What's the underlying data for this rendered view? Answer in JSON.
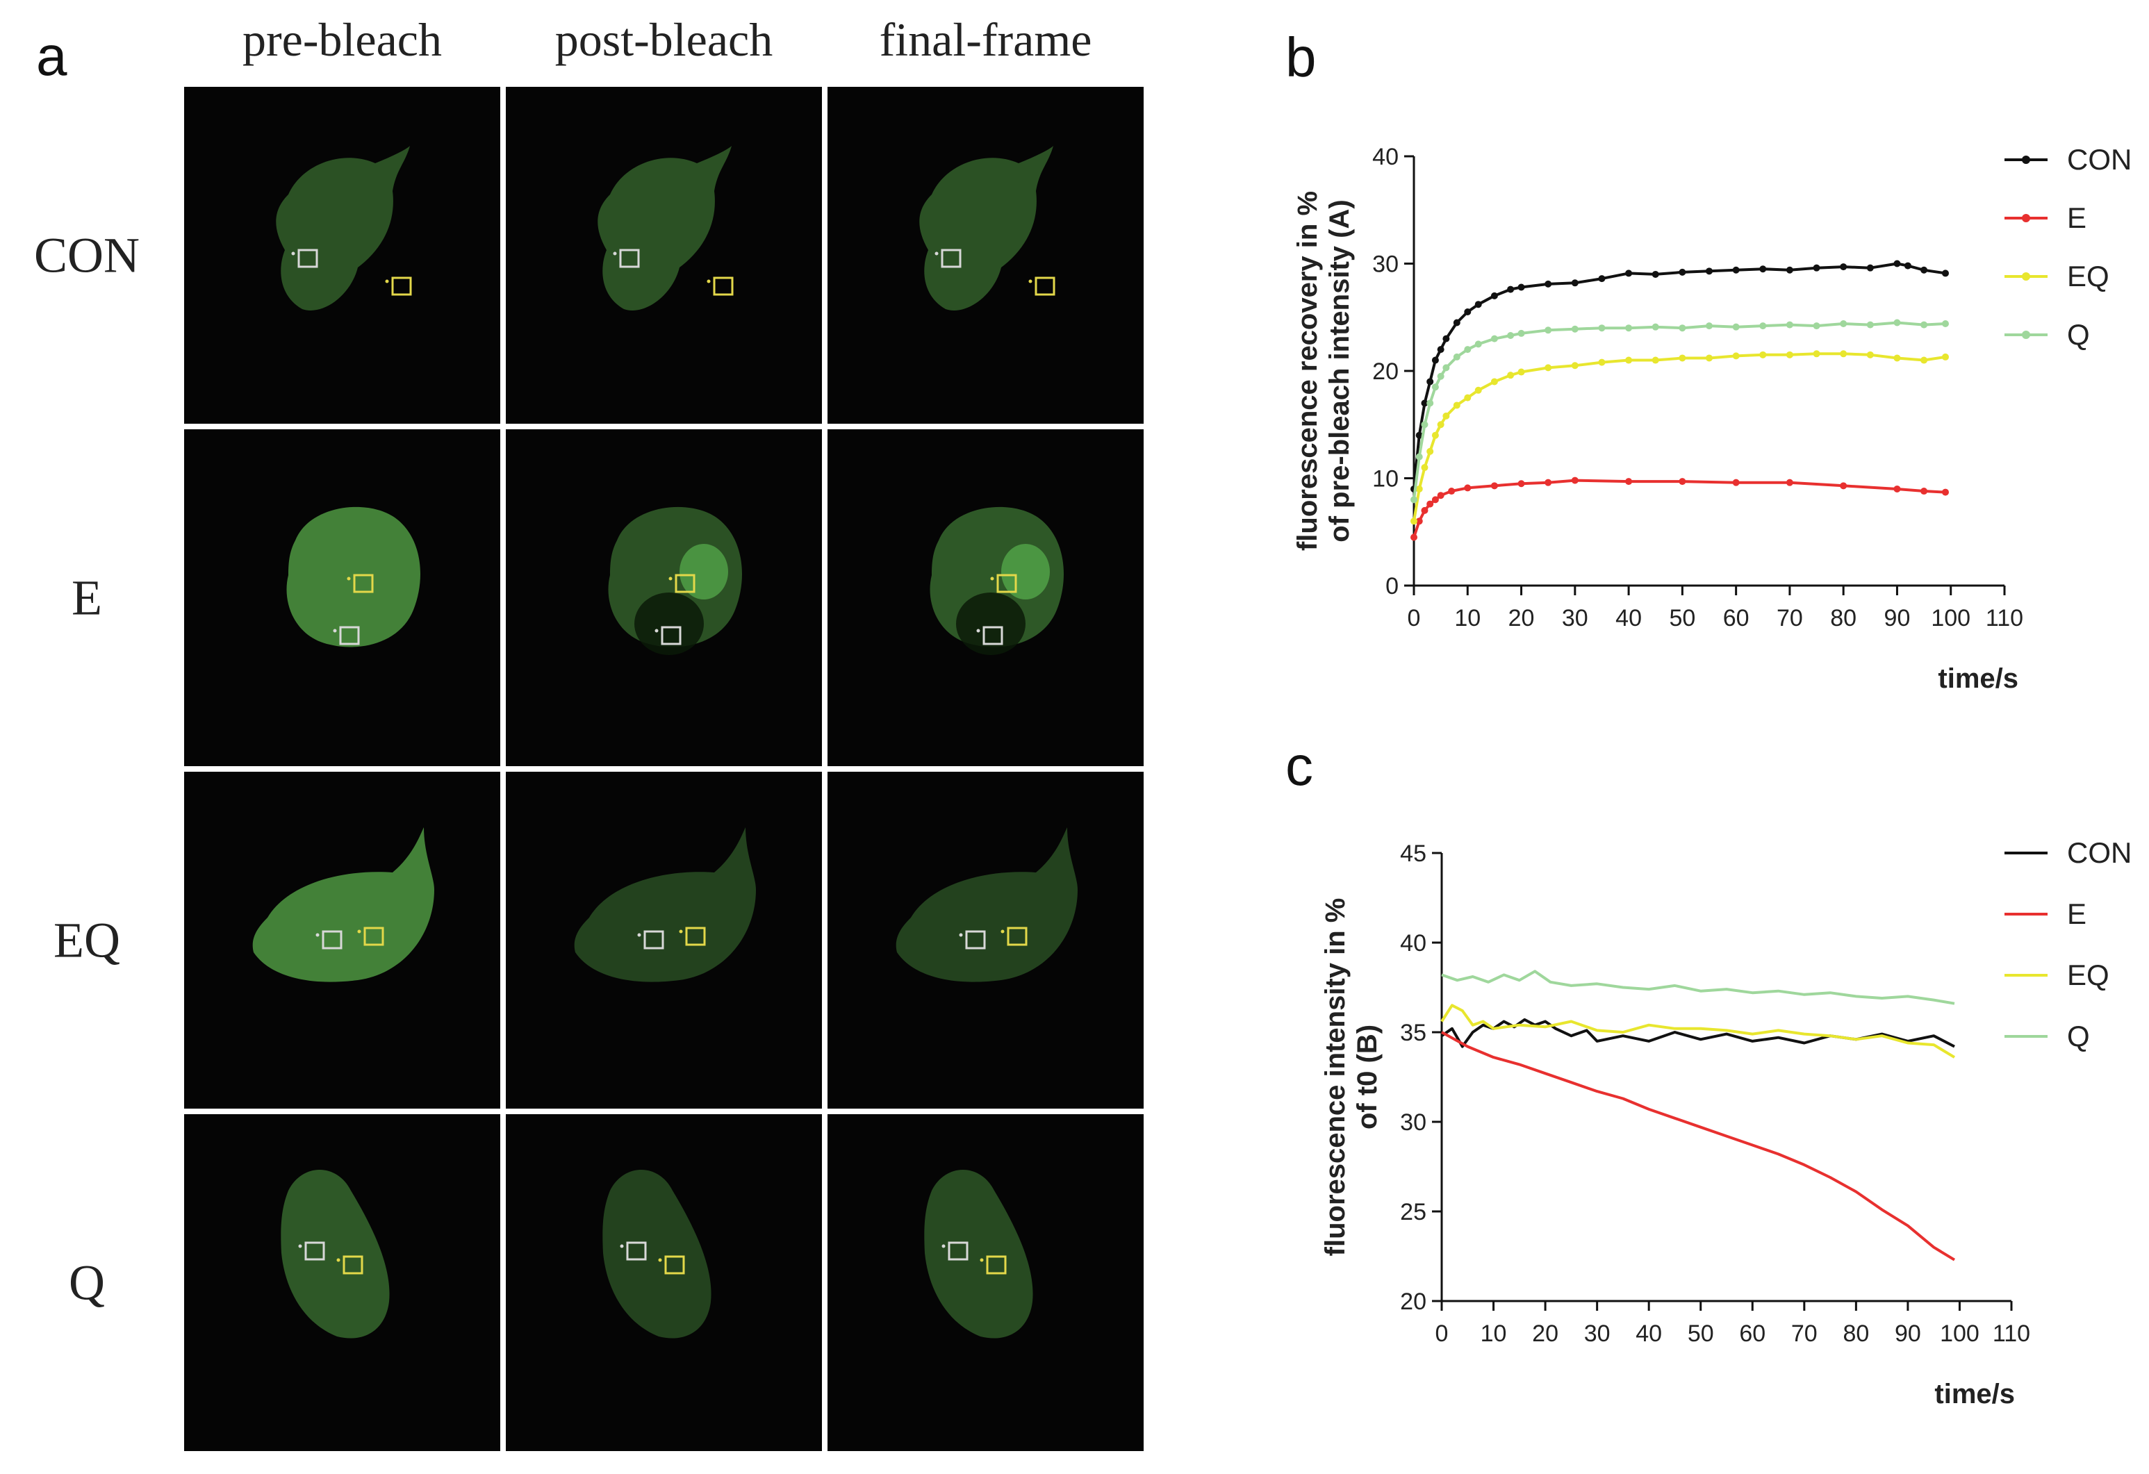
{
  "panel_a": {
    "letter": "a",
    "columns": [
      "pre-bleach",
      "post-bleach",
      "final-frame"
    ],
    "rows": [
      "CON",
      "E",
      "EQ",
      "Q"
    ],
    "colors": {
      "background": "#050505",
      "cell": "#4a8f3e",
      "white_roi": "#d8d8d8",
      "yellow_roi": "#e3d84a"
    }
  },
  "chart_data": [
    {
      "panel": "b",
      "type": "line",
      "ylabel_lines": [
        "fluorescence recovery in %",
        "of pre-bleach intensity (A)"
      ],
      "xlabel": "time/s",
      "xlim": [
        0,
        110
      ],
      "ylim": [
        0,
        40
      ],
      "xticks": [
        0,
        10,
        20,
        30,
        40,
        50,
        60,
        70,
        80,
        90,
        100,
        110
      ],
      "yticks": [
        0,
        10,
        20,
        30,
        40
      ],
      "markers": true,
      "legend_position": "right",
      "series": [
        {
          "name": "CON",
          "color": "#111111",
          "x": [
            0,
            1,
            2,
            3,
            4,
            5,
            6,
            8,
            10,
            12,
            15,
            18,
            20,
            25,
            30,
            35,
            40,
            45,
            50,
            55,
            60,
            65,
            70,
            75,
            80,
            85,
            90,
            92,
            95,
            99
          ],
          "y": [
            9,
            14,
            17,
            19,
            21,
            22,
            23,
            24.5,
            25.5,
            26.2,
            27,
            27.6,
            27.8,
            28.1,
            28.2,
            28.6,
            29.1,
            29,
            29.2,
            29.3,
            29.4,
            29.5,
            29.4,
            29.6,
            29.7,
            29.6,
            30,
            29.8,
            29.4,
            29.1
          ]
        },
        {
          "name": "E",
          "color": "#e8302f",
          "x": [
            0,
            1,
            2,
            3,
            4,
            5,
            7,
            10,
            15,
            20,
            25,
            30,
            40,
            50,
            60,
            70,
            80,
            90,
            95,
            99
          ],
          "y": [
            4.5,
            6,
            7,
            7.6,
            8,
            8.4,
            8.8,
            9.1,
            9.3,
            9.5,
            9.6,
            9.8,
            9.7,
            9.7,
            9.6,
            9.6,
            9.3,
            9,
            8.8,
            8.7
          ]
        },
        {
          "name": "EQ",
          "color": "#e8e62e",
          "x": [
            0,
            1,
            2,
            3,
            4,
            5,
            6,
            8,
            10,
            12,
            15,
            18,
            20,
            25,
            30,
            35,
            40,
            45,
            50,
            55,
            60,
            65,
            70,
            75,
            80,
            85,
            90,
            95,
            99
          ],
          "y": [
            6,
            9,
            11,
            12.5,
            14,
            15,
            15.8,
            16.8,
            17.5,
            18.2,
            19,
            19.6,
            19.9,
            20.3,
            20.5,
            20.8,
            21,
            21,
            21.2,
            21.2,
            21.4,
            21.5,
            21.5,
            21.6,
            21.6,
            21.5,
            21.2,
            21,
            21.3
          ]
        },
        {
          "name": "Q",
          "color": "#9fd79c",
          "x": [
            0,
            1,
            2,
            3,
            4,
            5,
            6,
            8,
            10,
            12,
            15,
            18,
            20,
            25,
            30,
            35,
            40,
            45,
            50,
            55,
            60,
            65,
            70,
            75,
            80,
            85,
            90,
            95,
            99
          ],
          "y": [
            8,
            12,
            15,
            17,
            18.5,
            19.5,
            20.3,
            21.3,
            22,
            22.5,
            23,
            23.3,
            23.5,
            23.8,
            23.9,
            24,
            24,
            24.1,
            24,
            24.2,
            24.1,
            24.2,
            24.3,
            24.2,
            24.4,
            24.3,
            24.5,
            24.3,
            24.4
          ]
        }
      ]
    },
    {
      "panel": "c",
      "type": "line",
      "ylabel_lines": [
        "fluorescence intensity in %",
        "of t0 (B)"
      ],
      "xlabel": "time/s",
      "xlim": [
        0,
        110
      ],
      "ylim": [
        20,
        45
      ],
      "xticks": [
        0,
        10,
        20,
        30,
        40,
        50,
        60,
        70,
        80,
        90,
        100,
        110
      ],
      "yticks": [
        20,
        25,
        30,
        35,
        40,
        45
      ],
      "markers": false,
      "legend_position": "right",
      "series": [
        {
          "name": "CON",
          "color": "#111111",
          "x": [
            0,
            2,
            4,
            6,
            8,
            10,
            12,
            14,
            16,
            18,
            20,
            22,
            25,
            28,
            30,
            35,
            40,
            45,
            50,
            55,
            60,
            65,
            70,
            75,
            80,
            85,
            90,
            95,
            99
          ],
          "y": [
            34.8,
            35.2,
            34.2,
            35,
            35.4,
            35.2,
            35.6,
            35.3,
            35.7,
            35.4,
            35.6,
            35.2,
            34.8,
            35.1,
            34.5,
            34.8,
            34.5,
            35,
            34.6,
            34.9,
            34.5,
            34.7,
            34.4,
            34.8,
            34.6,
            34.9,
            34.5,
            34.8,
            34.2
          ]
        },
        {
          "name": "E",
          "color": "#e8302f",
          "x": [
            0,
            5,
            10,
            15,
            20,
            25,
            30,
            35,
            40,
            45,
            50,
            55,
            60,
            65,
            70,
            75,
            80,
            85,
            90,
            95,
            99
          ],
          "y": [
            35,
            34.2,
            33.6,
            33.2,
            32.7,
            32.2,
            31.7,
            31.3,
            30.7,
            30.2,
            29.7,
            29.2,
            28.7,
            28.2,
            27.6,
            26.9,
            26.1,
            25.1,
            24.2,
            23,
            22.3
          ]
        },
        {
          "name": "EQ",
          "color": "#e8e62e",
          "x": [
            0,
            2,
            4,
            6,
            8,
            10,
            15,
            20,
            25,
            30,
            35,
            40,
            45,
            50,
            55,
            60,
            65,
            70,
            75,
            80,
            85,
            90,
            95,
            99
          ],
          "y": [
            35.6,
            36.5,
            36.2,
            35.4,
            35.6,
            35.2,
            35.4,
            35.3,
            35.6,
            35.1,
            35,
            35.4,
            35.2,
            35.2,
            35.1,
            34.9,
            35.1,
            34.9,
            34.8,
            34.6,
            34.8,
            34.4,
            34.3,
            33.6
          ]
        },
        {
          "name": "Q",
          "color": "#9fd79c",
          "x": [
            0,
            3,
            6,
            9,
            12,
            15,
            18,
            21,
            25,
            30,
            35,
            40,
            45,
            50,
            55,
            60,
            65,
            70,
            75,
            80,
            85,
            90,
            95,
            99
          ],
          "y": [
            38.2,
            37.9,
            38.1,
            37.8,
            38.2,
            37.9,
            38.4,
            37.8,
            37.6,
            37.7,
            37.5,
            37.4,
            37.6,
            37.3,
            37.4,
            37.2,
            37.3,
            37.1,
            37.2,
            37,
            36.9,
            37,
            36.8,
            36.6
          ]
        }
      ]
    }
  ],
  "panel_labels": {
    "b": "b",
    "c": "c"
  }
}
